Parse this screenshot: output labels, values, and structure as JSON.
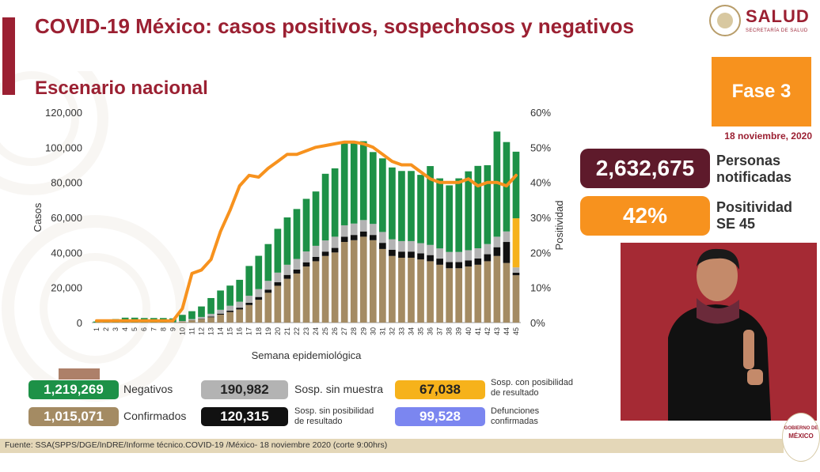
{
  "header": {
    "title": "COVID-19 México: casos positivos, sospechosos y negativos",
    "subtitle": "Escenario nacional"
  },
  "logo": {
    "salud": "SALUD",
    "salud_sub": "SECRETARÍA DE SALUD",
    "gobierno_line1": "GOBIERNO DE",
    "gobierno_line2": "MÉXICO"
  },
  "side": {
    "fase": "Fase 3",
    "date": "18 noviembre, 2020",
    "notificadas_value": "2,632,675",
    "notificadas_label_1": "Personas",
    "notificadas_label_2": "notificadas",
    "positividad_value": "42%",
    "positividad_label_1": "Positividad",
    "positividad_label_2": "SE 45"
  },
  "legend": {
    "negativos_value": "1,219,269",
    "negativos_label": "Negativos",
    "confirmados_value": "1,015,071",
    "confirmados_label": "Confirmados",
    "sin_muestra_value": "190,982",
    "sin_muestra_label": "Sosp. sin muestra",
    "sin_posibilidad_value": "120,315",
    "sin_posibilidad_label_1": "Sosp. sin posibilidad",
    "sin_posibilidad_label_2": "de resultado",
    "con_posibilidad_value": "67,038",
    "con_posibilidad_label_1": "Sosp. con posibilidad",
    "con_posibilidad_label_2": "de resultado",
    "defunciones_value": "99,528",
    "defunciones_label_1": "Defunciones",
    "defunciones_label_2": "confirmadas"
  },
  "footer": {
    "source": "Fuente: SSA(SPPS/DGE/InDRE/Informe técnico.COVID-19 /México- 18 noviembre 2020 (corte 9:00hrs)"
  },
  "colors": {
    "brand": "#9b2032",
    "confirmados": "#a48b63",
    "sin_posibilidad": "#111111",
    "sin_muestra": "#b3b3b3",
    "negativos": "#1d9147",
    "con_posibilidad": "#f6b21b",
    "positividad": "#f7921e",
    "fase": "#f7921e",
    "notificadas_box": "#5e1a2b",
    "defunciones": "#7b86f0"
  },
  "chart_data": {
    "type": "bar",
    "stacked": true,
    "xlabel": "Semana epidemiológica",
    "ylabel": "Casos",
    "y2label": "Positividad",
    "ylim": [
      0,
      120000
    ],
    "y2lim": [
      0,
      60
    ],
    "yticks": [
      "0",
      "20,000",
      "40,000",
      "60,000",
      "80,000",
      "100,000",
      "120,000"
    ],
    "y2ticks": [
      "0%",
      "10%",
      "20%",
      "30%",
      "40%",
      "50%",
      "60%"
    ],
    "categories": [
      "1",
      "2",
      "3",
      "4",
      "5",
      "6",
      "7",
      "8",
      "9",
      "10",
      "11",
      "12",
      "13",
      "14",
      "15",
      "16",
      "17",
      "18",
      "19",
      "20",
      "21",
      "22",
      "23",
      "24",
      "25",
      "26",
      "27",
      "28",
      "29",
      "30",
      "31",
      "32",
      "33",
      "34",
      "35",
      "36",
      "37",
      "38",
      "39",
      "40",
      "41",
      "42",
      "43",
      "44",
      "45"
    ],
    "series": [
      {
        "name": "Confirmados",
        "values": [
          0,
          0,
          0,
          0,
          0,
          0,
          0,
          0,
          100,
          600,
          1300,
          2000,
          3000,
          4500,
          6000,
          7500,
          10000,
          13000,
          17000,
          21000,
          25000,
          28000,
          32000,
          35000,
          38000,
          40000,
          46000,
          47000,
          49000,
          47000,
          42000,
          38000,
          37000,
          37000,
          36000,
          35000,
          33000,
          31000,
          31000,
          32000,
          33000,
          35000,
          38000,
          34000,
          27000
        ]
      },
      {
        "name": "Sosp. sin posibilidad de resultado",
        "values": [
          0,
          0,
          0,
          0,
          0,
          0,
          0,
          0,
          0,
          0,
          100,
          200,
          400,
          600,
          800,
          1000,
          1300,
          1600,
          1800,
          2000,
          2200,
          2300,
          2400,
          2500,
          2500,
          2600,
          3000,
          3000,
          3000,
          3000,
          3500,
          3500,
          3500,
          3500,
          3500,
          3500,
          3500,
          3500,
          3500,
          3500,
          3600,
          4000,
          5000,
          12000,
          1500
        ]
      },
      {
        "name": "Sosp. sin muestra",
        "values": [
          0,
          0,
          0,
          0,
          0,
          0,
          0,
          0,
          100,
          300,
          600,
          1000,
          1600,
          2200,
          2800,
          3400,
          4000,
          4500,
          5000,
          5500,
          5800,
          6000,
          6200,
          6300,
          6400,
          6400,
          6500,
          6500,
          6500,
          6300,
          6200,
          6000,
          6000,
          6000,
          5800,
          5800,
          5800,
          5800,
          5800,
          5800,
          5800,
          5800,
          6000,
          6000,
          3000
        ]
      },
      {
        "name": "Sosp. con posibilidad de resultado",
        "values": [
          0,
          0,
          0,
          0,
          0,
          0,
          0,
          0,
          0,
          0,
          0,
          0,
          0,
          0,
          0,
          0,
          0,
          0,
          0,
          0,
          0,
          0,
          0,
          0,
          0,
          0,
          0,
          0,
          0,
          0,
          0,
          0,
          0,
          0,
          0,
          0,
          0,
          0,
          0,
          0,
          0,
          0,
          0,
          0,
          28000
        ]
      },
      {
        "name": "Negativos",
        "values": [
          600,
          1200,
          2000,
          2800,
          2800,
          2600,
          2600,
          2600,
          2200,
          3500,
          4500,
          6000,
          9000,
          11000,
          11500,
          12500,
          17000,
          19000,
          21000,
          25000,
          27000,
          28500,
          30000,
          31000,
          38000,
          39000,
          48000,
          46000,
          45000,
          41000,
          42000,
          41000,
          40000,
          40000,
          39000,
          45000,
          40000,
          38000,
          42000,
          45000,
          47000,
          45000,
          60000,
          51000,
          38000
        ]
      },
      {
        "name": "Positividad",
        "axis": "right",
        "values": [
          0.5,
          0.5,
          0.5,
          0.5,
          0.5,
          0.5,
          0.5,
          0.5,
          0.5,
          4,
          14,
          15,
          18,
          26,
          32,
          39,
          42,
          41.5,
          44,
          46,
          48,
          48,
          49,
          50,
          50.5,
          51,
          51.5,
          51.5,
          51,
          50,
          48,
          46,
          45,
          45,
          43,
          41,
          40,
          40,
          40,
          41,
          39,
          40,
          40,
          39,
          42
        ]
      }
    ]
  }
}
